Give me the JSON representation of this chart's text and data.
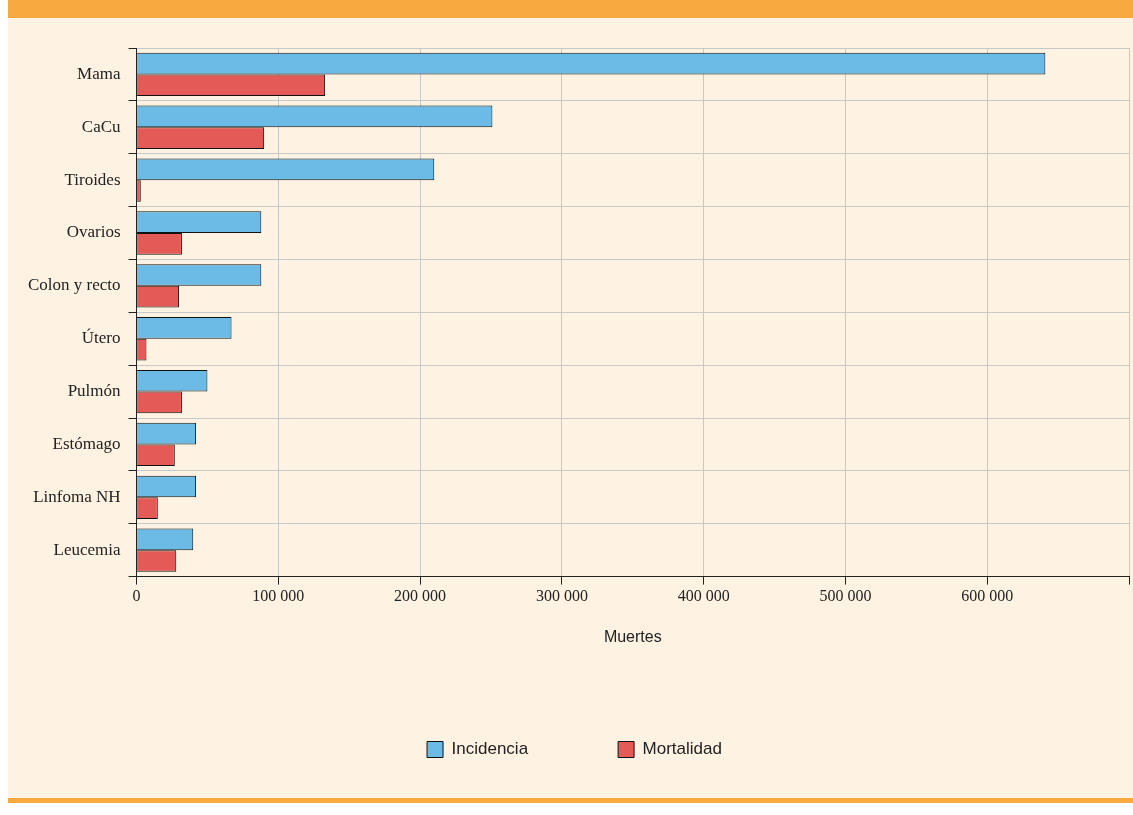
{
  "chart_data": {
    "type": "bar",
    "orientation": "horizontal",
    "xlabel": "Muertes",
    "categories": [
      "Mama",
      "CaCu",
      "Tiroides",
      "Ovarios",
      "Colon y recto",
      "Útero",
      "Pulmón",
      "Estómago",
      "Linfoma NH",
      "Leucemia"
    ],
    "series": [
      {
        "name": "Incidencia",
        "color": "#6bbbe6",
        "values": [
          641000,
          251000,
          210000,
          88000,
          88000,
          67000,
          50000,
          42000,
          42000,
          40000
        ]
      },
      {
        "name": "Mortalidad",
        "color": "#e45a57",
        "values": [
          133000,
          90000,
          3000,
          32000,
          30000,
          7000,
          32000,
          27000,
          15000,
          28000
        ]
      }
    ],
    "xlim": [
      0,
      700000
    ],
    "xticks": [
      0,
      {
        "value": 100000,
        "label": "100 000"
      },
      {
        "value": 200000,
        "label": "200 000"
      },
      {
        "value": 300000,
        "label": "300 000"
      },
      {
        "value": 400000,
        "label": "400 000"
      },
      {
        "value": 500000,
        "label": "500 000"
      },
      {
        "value": 600000,
        "label": "600 000"
      },
      {
        "value": 700000,
        "label": null
      }
    ],
    "grid": true,
    "legend": "bottom"
  }
}
